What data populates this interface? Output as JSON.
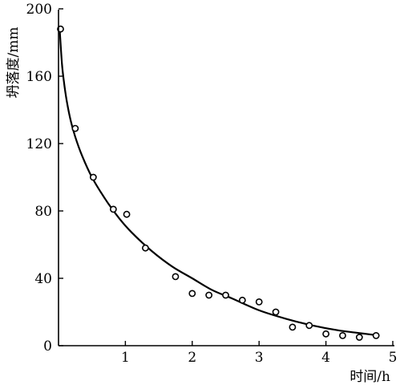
{
  "chart_data": {
    "type": "scatter",
    "xlabel": "时间/h",
    "ylabel": "坍落度/mm",
    "xlim": [
      0,
      5
    ],
    "ylim": [
      0,
      200
    ],
    "x_ticks": [
      1,
      2,
      3,
      4,
      5
    ],
    "y_ticks": [
      0,
      40,
      80,
      120,
      160,
      200
    ],
    "x_tick_labels": [
      "1",
      "2",
      "3",
      "4",
      "5"
    ],
    "y_tick_labels": [
      "0",
      "40",
      "80",
      "120",
      "160",
      "200"
    ],
    "grid": false,
    "series": [
      {
        "kind": "points",
        "marker": "open-circle",
        "x": [
          0.03,
          0.25,
          0.52,
          0.82,
          1.02,
          1.3,
          1.75,
          2.0,
          2.25,
          2.5,
          2.75,
          3.0,
          3.25,
          3.5,
          3.75,
          4.0,
          4.25,
          4.5,
          4.75
        ],
        "y": [
          188,
          129,
          100,
          81,
          78,
          58,
          41,
          31,
          30,
          30,
          27,
          26,
          20,
          11,
          12,
          7,
          6,
          5,
          6
        ]
      },
      {
        "kind": "fit-curve",
        "x": [
          0.02,
          0.05,
          0.08,
          0.12,
          0.18,
          0.25,
          0.35,
          0.5,
          0.7,
          0.9,
          1.1,
          1.4,
          1.7,
          2.0,
          2.3,
          2.6,
          3.0,
          3.4,
          3.8,
          4.2,
          4.6,
          4.8
        ],
        "y": [
          186,
          168,
          157,
          146,
          134,
          124,
          113,
          100,
          87,
          76,
          67,
          56,
          47,
          40,
          33,
          28,
          21,
          16,
          12,
          9,
          7,
          6
        ]
      }
    ]
  }
}
